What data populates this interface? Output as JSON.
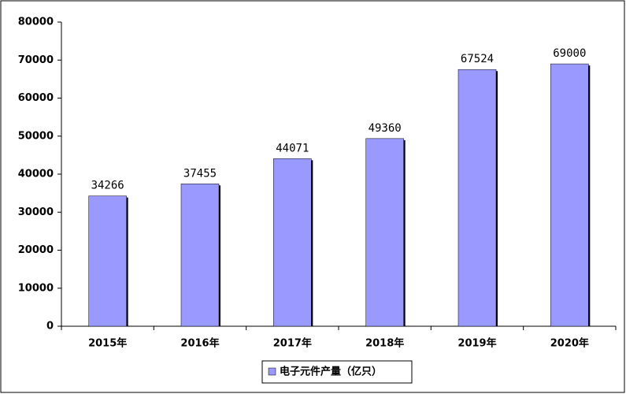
{
  "chart_data": {
    "type": "bar",
    "categories": [
      "2015年",
      "2016年",
      "2017年",
      "2018年",
      "2019年",
      "2020年"
    ],
    "series": [
      {
        "name": "电子元件产量（亿只）",
        "color": "#9999ff",
        "values": [
          34266,
          37455,
          44071,
          49360,
          67524,
          69000
        ]
      }
    ],
    "ylim": [
      0,
      80000
    ],
    "yticks": [
      0,
      10000,
      20000,
      30000,
      40000,
      50000,
      60000,
      70000,
      80000
    ],
    "legend": "bottom"
  }
}
